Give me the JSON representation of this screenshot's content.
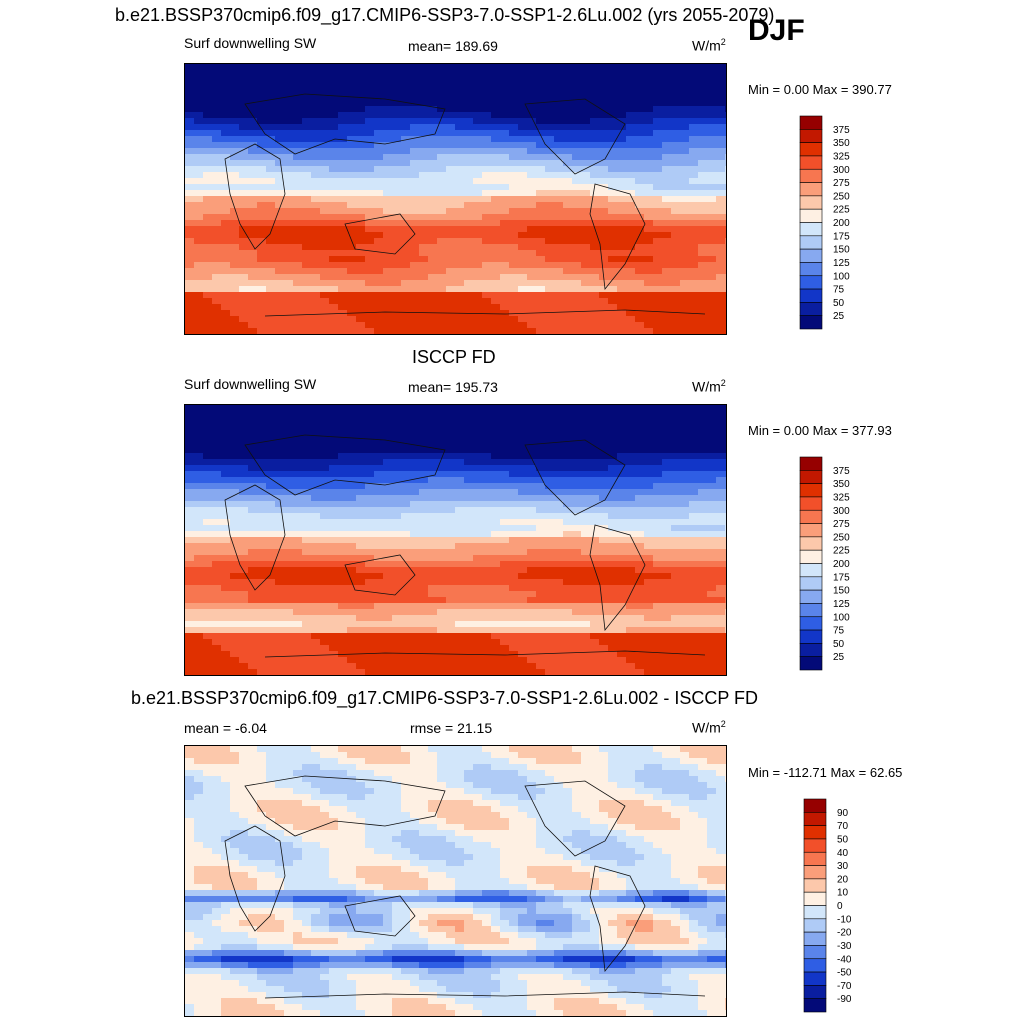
{
  "header": {
    "top_title": "b.e21.BSSP370cmip6.f09_g17.CMIP6-SSP3-7.0-SSP1-2.6Lu.002 (yrs 2055-2079)",
    "season": "DJF"
  },
  "panels": [
    {
      "title": "",
      "left_label": "Surf downwelling SW",
      "center_label": "mean= 189.69",
      "units": "W/m",
      "units_sup": "2",
      "minmax": "Min =   0.00 Max = 390.77"
    },
    {
      "title": "ISCCP FD",
      "left_label": "Surf downwelling SW",
      "center_label": "mean= 195.73",
      "units": "W/m",
      "units_sup": "2",
      "minmax": "Min =   0.00 Max = 377.93"
    },
    {
      "title": "b.e21.BSSP370cmip6.f09_g17.CMIP6-SSP3-7.0-SSP1-2.6Lu.002 - ISCCP FD",
      "left_label": "mean =  -6.04",
      "center_label": "rmse =  21.15",
      "units": "W/m",
      "units_sup": "2",
      "minmax": "Min = -112.71 Max =  62.65"
    }
  ],
  "colorbars": {
    "absolute": {
      "labels": [
        "375",
        "350",
        "325",
        "300",
        "275",
        "250",
        "225",
        "200",
        "175",
        "150",
        "125",
        "100",
        "75",
        "50",
        "25"
      ],
      "colors": [
        "#960000",
        "#c21800",
        "#e03000",
        "#f2502a",
        "#f77650",
        "#fa9e7a",
        "#fcc8ab",
        "#fef0e3",
        "#d2e6fa",
        "#afcbf6",
        "#87a9f0",
        "#5a84ea",
        "#2f5ee4",
        "#1236c8",
        "#0a1ea0",
        "#030a78"
      ]
    },
    "difference": {
      "labels": [
        "90",
        "70",
        "50",
        "40",
        "30",
        "20",
        "10",
        "0",
        "-10",
        "-20",
        "-30",
        "-40",
        "-50",
        "-70",
        "-90"
      ],
      "colors": [
        "#960000",
        "#c21800",
        "#e03000",
        "#f2502a",
        "#f77650",
        "#fa9e7a",
        "#fcc8ab",
        "#fef0e3",
        "#d2e6fa",
        "#afcbf6",
        "#87a9f0",
        "#5a84ea",
        "#2f5ee4",
        "#1236c8",
        "#0a1ea0",
        "#030a78"
      ]
    }
  }
}
